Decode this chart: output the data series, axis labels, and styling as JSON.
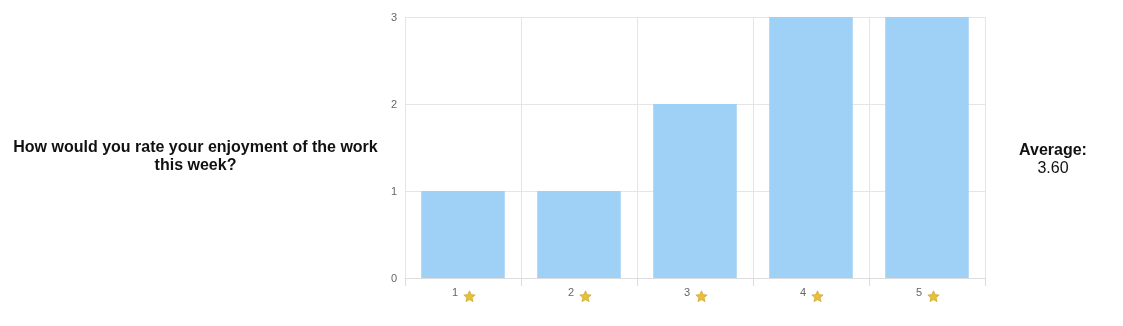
{
  "chart_data": {
    "type": "bar",
    "title": "How would you rate your enjoyment of the work this week?",
    "categories": [
      "1",
      "2",
      "3",
      "4",
      "5"
    ],
    "values": [
      1,
      1,
      2,
      3,
      3
    ],
    "color": "#9fd0f5",
    "ylim": [
      0,
      3
    ],
    "yticks": [
      0,
      1,
      2,
      3
    ],
    "grid": true,
    "annotations": [
      "Average:",
      "3.60"
    ]
  }
}
